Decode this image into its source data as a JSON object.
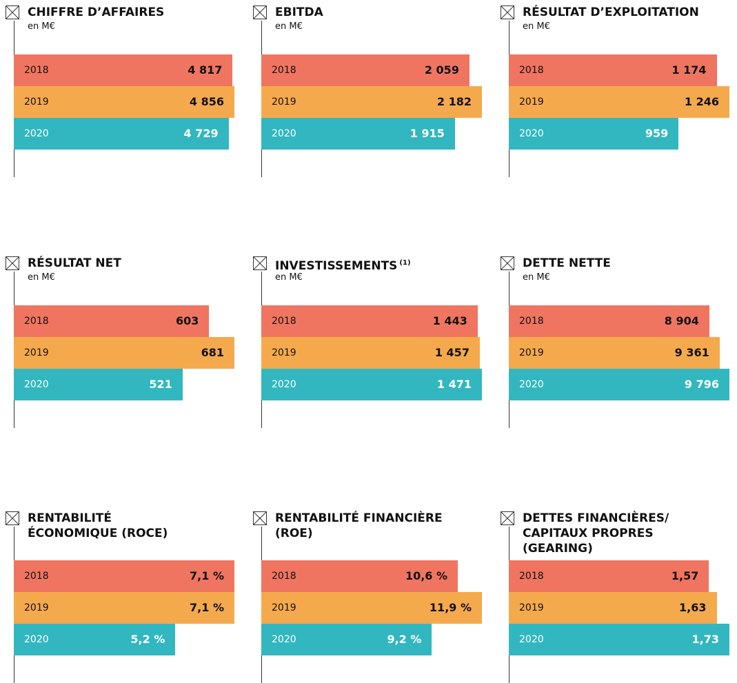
{
  "chart_data": [
    {
      "type": "bar",
      "title": [
        "CHIFFRE D’AFFAIRES"
      ],
      "subtitle": "en M€",
      "categories": [
        "2018",
        "2019",
        "2020"
      ],
      "values": [
        4817,
        4856,
        4729
      ],
      "value_labels": [
        "4 817",
        "4 856",
        "4 729"
      ],
      "colors": [
        "#ef7561",
        "#f5a94d",
        "#32b7c0"
      ]
    },
    {
      "type": "bar",
      "title": [
        "EBITDA"
      ],
      "subtitle": "en M€",
      "categories": [
        "2018",
        "2019",
        "2020"
      ],
      "values": [
        2059,
        2182,
        1915
      ],
      "value_labels": [
        "2 059",
        "2 182",
        "1 915"
      ],
      "colors": [
        "#ef7561",
        "#f5a94d",
        "#32b7c0"
      ]
    },
    {
      "type": "bar",
      "title": [
        "RÉSULTAT D’EXPLOITATION"
      ],
      "subtitle": "en M€",
      "categories": [
        "2018",
        "2019",
        "2020"
      ],
      "values": [
        1174,
        1246,
        959
      ],
      "value_labels": [
        "1 174",
        "1 246",
        "959"
      ],
      "colors": [
        "#ef7561",
        "#f5a94d",
        "#32b7c0"
      ]
    },
    {
      "type": "bar",
      "title": [
        "RÉSULTAT NET"
      ],
      "subtitle": "en M€",
      "categories": [
        "2018",
        "2019",
        "2020"
      ],
      "values": [
        603,
        681,
        521
      ],
      "colors": [
        "#ef7561",
        "#f5a94d",
        "#32b7c0"
      ]
    },
    {
      "type": "bar",
      "title": [
        "INVESTISSEMENTS"
      ],
      "title_note": "(1)",
      "subtitle": "en M€",
      "categories": [
        "2018",
        "2019",
        "2020"
      ],
      "values": [
        1443,
        1457,
        1471
      ],
      "value_labels": [
        "1 443",
        "1 457",
        "1 471"
      ],
      "colors": [
        "#ef7561",
        "#f5a94d",
        "#32b7c0"
      ]
    },
    {
      "type": "bar",
      "title": [
        "DETTE NETTE"
      ],
      "subtitle": "en M€",
      "categories": [
        "2018",
        "2019",
        "2020"
      ],
      "values": [
        8904,
        9361,
        9796
      ],
      "value_labels": [
        "8 904",
        "9 361",
        "9 796"
      ],
      "colors": [
        "#ef7561",
        "#f5a94d",
        "#32b7c0"
      ]
    },
    {
      "type": "bar",
      "title": [
        "RENTABILITÉ",
        "ÉCONOMIQUE (ROCE)"
      ],
      "categories": [
        "2018",
        "2019",
        "2020"
      ],
      "values": [
        7.1,
        7.1,
        5.2
      ],
      "value_labels": [
        "7,1 %",
        "7,1 %",
        "5,2 %"
      ],
      "colors": [
        "#ef7561",
        "#f5a94d",
        "#32b7c0"
      ]
    },
    {
      "type": "bar",
      "title": [
        "RENTABILITÉ FINANCIÈRE",
        "(ROE)"
      ],
      "categories": [
        "2018",
        "2019",
        "2020"
      ],
      "values": [
        10.6,
        11.9,
        9.2
      ],
      "value_labels": [
        "10,6 %",
        "11,9 %",
        "9,2 %"
      ],
      "colors": [
        "#ef7561",
        "#f5a94d",
        "#32b7c0"
      ]
    },
    {
      "type": "bar",
      "title": [
        "DETTES FINANCIÈRES/",
        "CAPITAUX PROPRES",
        "(GEARING)"
      ],
      "categories": [
        "2018",
        "2019",
        "2020"
      ],
      "values": [
        1.57,
        1.63,
        1.73
      ],
      "value_labels": [
        "1,57",
        "1,63",
        "1,73"
      ],
      "colors": [
        "#ef7561",
        "#f5a94d",
        "#32b7c0"
      ]
    }
  ]
}
